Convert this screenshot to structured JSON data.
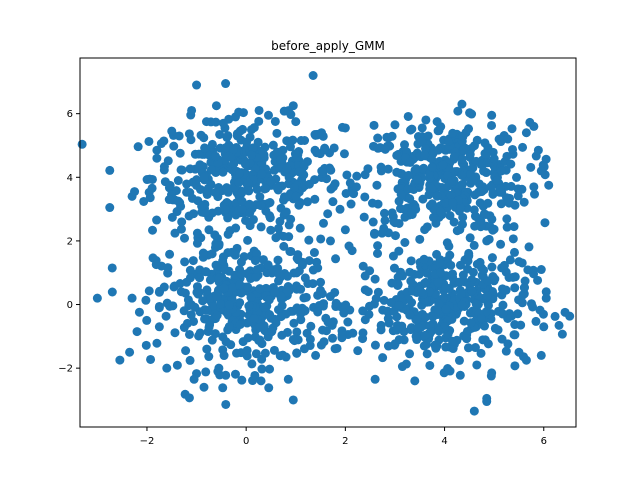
{
  "chart_data": {
    "type": "scatter",
    "title": "before_apply_GMM",
    "xlabel": "",
    "ylabel": "",
    "xlim": [
      -3.35,
      6.65
    ],
    "ylim": [
      -3.85,
      7.75
    ],
    "xticks": [
      -2,
      0,
      2,
      4,
      6
    ],
    "yticks": [
      -2,
      0,
      2,
      4,
      6
    ],
    "grid": false,
    "point_color": "#1f77b4",
    "clusters": [
      {
        "center": [
          0,
          4
        ],
        "spread": [
          0.95,
          0.9
        ],
        "count": 400
      },
      {
        "center": [
          4,
          4
        ],
        "spread": [
          0.85,
          0.85
        ],
        "count": 400
      },
      {
        "center": [
          0,
          0
        ],
        "spread": [
          0.9,
          1.0
        ],
        "count": 400
      },
      {
        "center": [
          4,
          0
        ],
        "spread": [
          0.85,
          0.9
        ],
        "count": 400
      }
    ],
    "points": [
      [
        1.35,
        7.2
      ],
      [
        -1.0,
        6.9
      ],
      [
        0.95,
        6.25
      ],
      [
        -2.75,
        3.05
      ],
      [
        -2.7,
        1.15
      ],
      [
        -3.0,
        0.2
      ],
      [
        -2.35,
        -1.5
      ],
      [
        -2.3,
        0.2
      ],
      [
        -2.2,
        -0.85
      ],
      [
        -1.2,
        0.7
      ],
      [
        -1.05,
        -2.35
      ],
      [
        -0.85,
        -2.6
      ],
      [
        0.85,
        -2.35
      ],
      [
        0.95,
        -3.0
      ],
      [
        4.6,
        -3.35
      ],
      [
        4.85,
        -2.95
      ],
      [
        4.85,
        -3.05
      ],
      [
        3.4,
        -2.4
      ],
      [
        2.6,
        -2.35
      ],
      [
        5.65,
        -1.75
      ],
      [
        5.95,
        -1.6
      ],
      [
        6.05,
        0.4
      ],
      [
        6.05,
        0.2
      ],
      [
        6.1,
        3.75
      ],
      [
        5.95,
        4.2
      ],
      [
        6.0,
        -0.7
      ],
      [
        5.95,
        1.1
      ],
      [
        4.35,
        6.3
      ],
      [
        2.0,
        5.55
      ],
      [
        -1.8,
        4.85
      ],
      [
        -1.8,
        4.6
      ],
      [
        -2.3,
        3.4
      ],
      [
        -2.25,
        3.55
      ],
      [
        3.2,
        1.95
      ],
      [
        3.5,
        2.05
      ],
      [
        2.65,
        1.85
      ],
      [
        2.0,
        2.35
      ],
      [
        2.05,
        -0.55
      ],
      [
        2.15,
        -0.9
      ],
      [
        1.5,
        0.7
      ],
      [
        2.4,
        0.9
      ],
      [
        2.6,
        0.8
      ],
      [
        2.35,
        -0.2
      ],
      [
        1.7,
        2.0
      ],
      [
        0.6,
        2.1
      ],
      [
        -0.75,
        2.35
      ],
      [
        -0.55,
        1.85
      ],
      [
        -1.3,
        2.6
      ],
      [
        -1.55,
        3.3
      ],
      [
        4.75,
        3.55
      ],
      [
        5.8,
        3.7
      ],
      [
        5.65,
        5.4
      ],
      [
        5.8,
        5.6
      ],
      [
        5.1,
        5.2
      ],
      [
        4.95,
        5.95
      ],
      [
        3.0,
        5.65
      ],
      [
        3.85,
        5.75
      ],
      [
        3.55,
        5.55
      ],
      [
        1.0,
        5.75
      ],
      [
        0.45,
        5.95
      ],
      [
        -0.15,
        6.05
      ],
      [
        -1.1,
        6.1
      ],
      [
        -0.8,
        5.75
      ],
      [
        -1.5,
        5.45
      ],
      [
        -1.35,
        5.3
      ],
      [
        -1.75,
        -0.7
      ],
      [
        -1.6,
        -2.0
      ],
      [
        -1.75,
        -0.1
      ],
      [
        -1.65,
        0.55
      ],
      [
        -0.55,
        -2.0
      ],
      [
        0.3,
        -2.4
      ],
      [
        1.4,
        -1.6
      ],
      [
        1.65,
        -0.55
      ],
      [
        4.9,
        2.05
      ],
      [
        4.85,
        2.0
      ],
      [
        5.4,
        2.45
      ],
      [
        5.5,
        1.35
      ],
      [
        5.3,
        0.85
      ],
      [
        5.4,
        -0.95
      ],
      [
        5.5,
        -1.5
      ],
      [
        4.65,
        -1.9
      ],
      [
        4.95,
        -2.15
      ],
      [
        3.15,
        -1.95
      ],
      [
        2.25,
        -1.45
      ],
      [
        3.65,
        -1.55
      ]
    ]
  }
}
